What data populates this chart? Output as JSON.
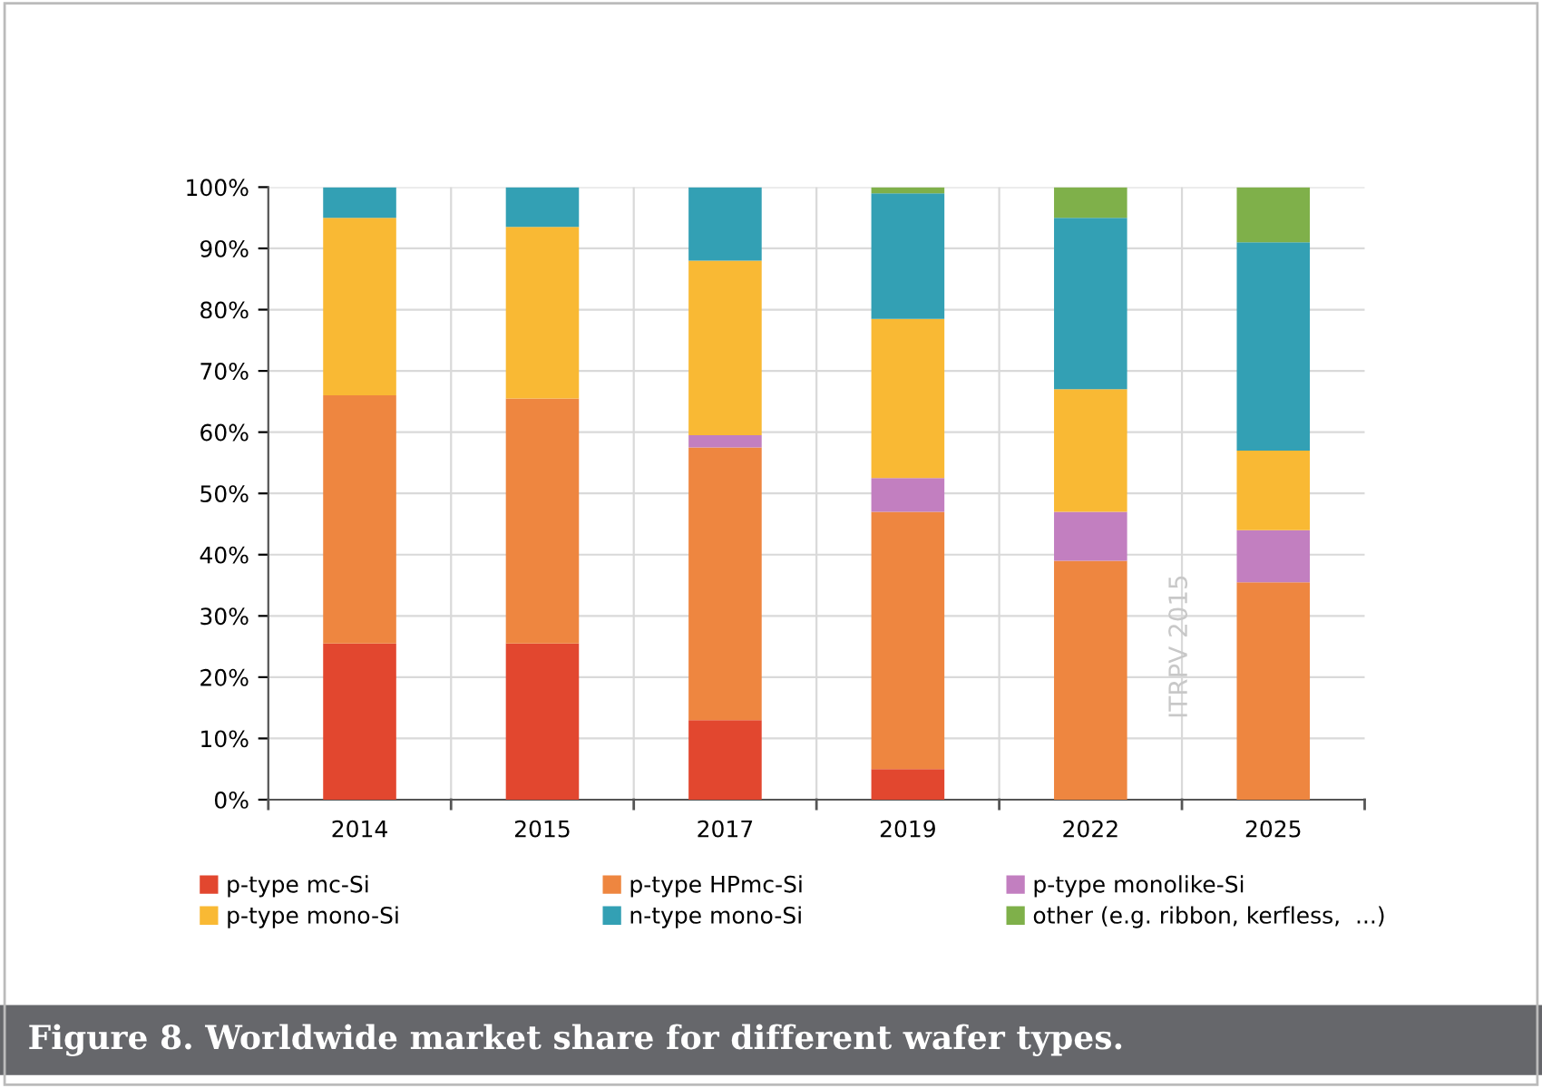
{
  "chart_data": {
    "type": "bar",
    "stacked": true,
    "title": "Figure 8. Worldwide market share for different wafer types.",
    "categories": [
      "2014",
      "2015",
      "2017",
      "2019",
      "2022",
      "2025"
    ],
    "series": [
      {
        "name": "p-type mc-Si",
        "color": "#e2472f",
        "values": [
          25.5,
          25.5,
          13,
          5,
          0,
          0
        ]
      },
      {
        "name": "p-type HPmc-Si",
        "color": "#ee8640",
        "values": [
          40.5,
          40,
          44.5,
          42,
          39,
          35.5
        ]
      },
      {
        "name": "p-type monolike-Si",
        "color": "#c27fc0",
        "values": [
          0,
          0,
          2,
          5.5,
          8,
          8.5
        ]
      },
      {
        "name": "p-type mono-Si",
        "color": "#f9b934",
        "values": [
          29,
          28,
          28.5,
          26,
          20,
          13
        ]
      },
      {
        "name": "n-type mono-Si",
        "color": "#33a0b4",
        "values": [
          5,
          6.5,
          12,
          20.5,
          28,
          34
        ]
      },
      {
        "name": "other (e.g. ribbon, kerfless,  ...)",
        "color": "#7fb04a",
        "values": [
          0,
          0,
          0,
          1,
          5,
          9
        ]
      }
    ],
    "ylim": [
      0,
      100
    ],
    "yticks": [
      {
        "value": 0,
        "label": "0%"
      },
      {
        "value": 10,
        "label": "10%"
      },
      {
        "value": 20,
        "label": "20%"
      },
      {
        "value": 30,
        "label": "30%"
      },
      {
        "value": 40,
        "label": "40%"
      },
      {
        "value": 50,
        "label": "50%"
      },
      {
        "value": 60,
        "label": "60%"
      },
      {
        "value": 70,
        "label": "70%"
      },
      {
        "value": 80,
        "label": "80%"
      },
      {
        "value": 90,
        "label": "90%"
      },
      {
        "value": 100,
        "label": "100%"
      }
    ],
    "grid": true,
    "legend": "bottom",
    "annotations": [
      "ITRPV 2015"
    ]
  }
}
